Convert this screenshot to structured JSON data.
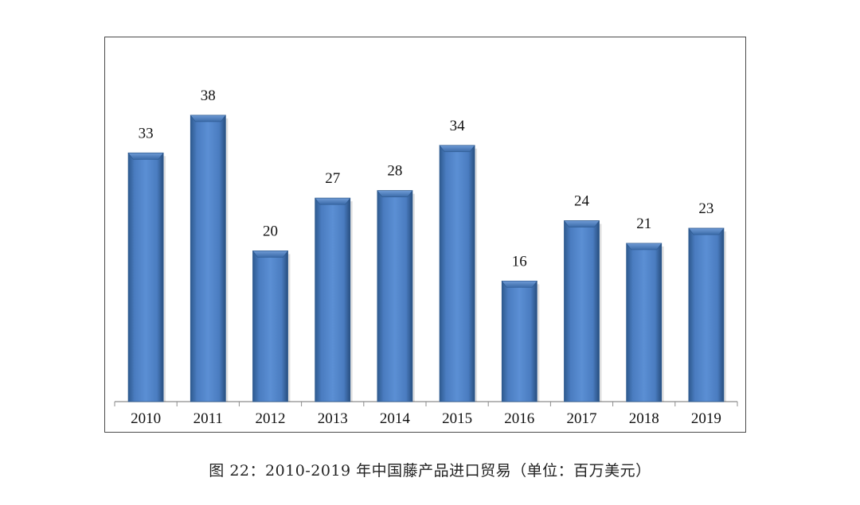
{
  "caption": "图 22：2010-2019 年中国藤产品进口贸易（单位：百万美元）",
  "colors": {
    "bar": "#4f81bd",
    "bar_dark": "#2e5a8f",
    "bar_light": "#7aa3d8",
    "bar_top": "#3a6aa8",
    "axis": "#8c8c8c",
    "text": "#111111",
    "frame": "#4a4a4a"
  },
  "chart_data": {
    "type": "bar",
    "title": "",
    "xlabel": "",
    "ylabel": "",
    "categories": [
      "2010",
      "2011",
      "2012",
      "2013",
      "2014",
      "2015",
      "2016",
      "2017",
      "2018",
      "2019"
    ],
    "values": [
      33,
      38,
      20,
      27,
      28,
      34,
      16,
      24,
      21,
      23
    ],
    "data_labels": [
      "33",
      "38",
      "20",
      "27",
      "28",
      "34",
      "16",
      "24",
      "21",
      "23"
    ],
    "ylim": [
      0,
      42
    ],
    "grid": false,
    "legend": "none",
    "style": "3d-bar"
  }
}
